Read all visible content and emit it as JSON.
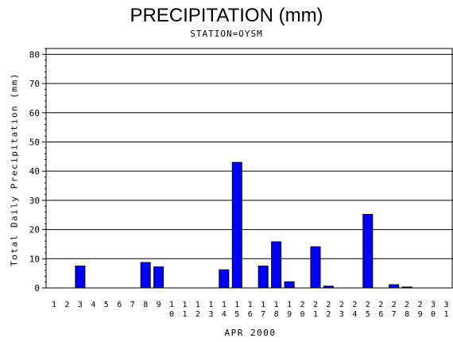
{
  "chart_data": {
    "type": "bar",
    "title": "PRECIPITATION (mm)",
    "subtitle": "STATION=OYSM",
    "xlabel": "APR 2000",
    "ylabel": "Total Daily Precipitation (mm)",
    "ylim": [
      0,
      82
    ],
    "yticks": [
      0,
      10,
      20,
      30,
      40,
      50,
      60,
      70,
      80
    ],
    "grid": true,
    "bar_color": "#0000ff",
    "categories": [
      "1",
      "2",
      "3",
      "4",
      "5",
      "6",
      "7",
      "8",
      "9",
      "10",
      "11",
      "12",
      "13",
      "14",
      "15",
      "16",
      "17",
      "18",
      "19",
      "20",
      "21",
      "22",
      "23",
      "24",
      "25",
      "26",
      "27",
      "28",
      "29",
      "30",
      "31"
    ],
    "values": [
      0,
      0,
      7.5,
      0,
      0,
      0,
      0,
      8.7,
      7.2,
      0,
      0,
      0,
      0,
      6.2,
      43.0,
      0,
      7.5,
      15.8,
      2.1,
      0,
      14.1,
      0.6,
      0,
      0,
      25.2,
      0,
      1.1,
      0.3,
      0,
      0,
      0
    ]
  }
}
